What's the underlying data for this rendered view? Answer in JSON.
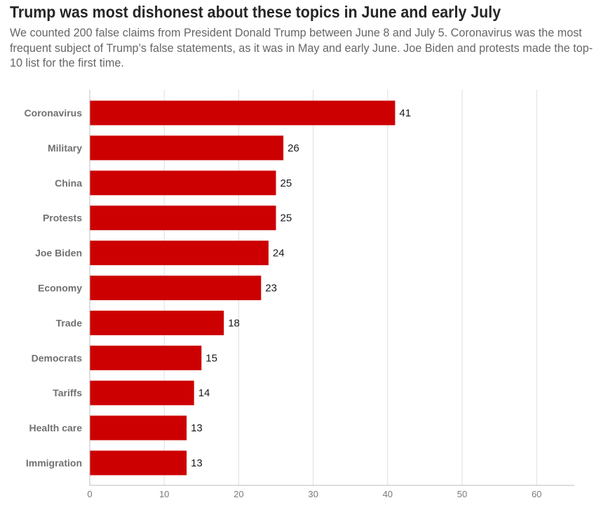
{
  "header": {
    "title": "Trump was most dishonest about these topics in June and early July",
    "subtitle": "We counted 200 false claims from President Donald Trump between June 8 and July 5. Coronavirus was the most frequent subject of Trump’s false statements, as it was in May and early June. Joe Biden and protests made the top-10 list for the first time."
  },
  "chart_data": {
    "type": "bar",
    "orientation": "horizontal",
    "title": "Trump was most dishonest about these topics in June and early July",
    "subtitle": "We counted 200 false claims from President Donald Trump between June 8 and July 5. Coronavirus was the most frequent subject of Trump’s false statements, as it was in May and early June. Joe Biden and protests made the top-10 list for the first time.",
    "categories": [
      "Coronavirus",
      "Military",
      "China",
      "Protests",
      "Joe Biden",
      "Economy",
      "Trade",
      "Democrats",
      "Tariffs",
      "Health care",
      "Immigration"
    ],
    "values": [
      41,
      26,
      25,
      25,
      24,
      23,
      18,
      15,
      14,
      13,
      13
    ],
    "xlabel": "",
    "ylabel": "",
    "xlim": [
      0,
      65
    ],
    "xticks": [
      0,
      10,
      20,
      30,
      40,
      50,
      60
    ],
    "grid": true,
    "legend": "none",
    "bar_color": "#cc0000",
    "show_value_labels": true
  }
}
